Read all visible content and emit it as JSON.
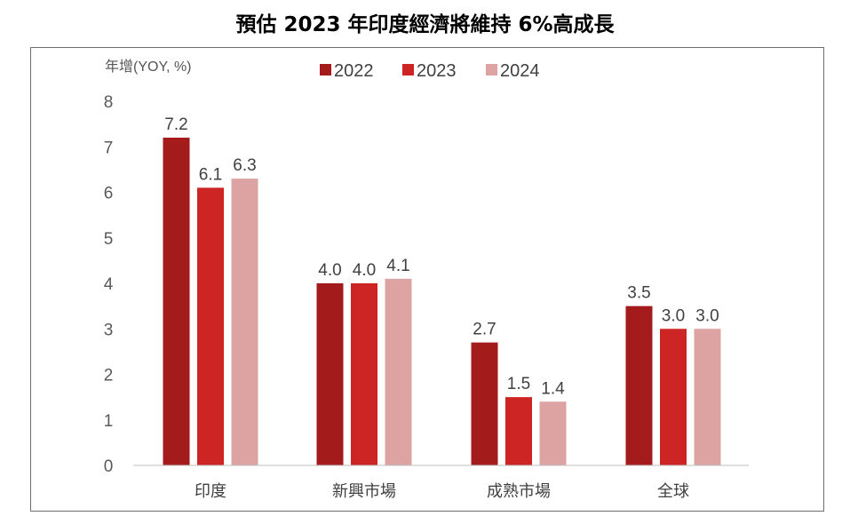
{
  "title": "預估 2023 年印度經濟將維持 6%高成長",
  "chart_data": {
    "type": "bar",
    "title": "預估 2023 年印度經濟將維持 6%高成長",
    "ylabel": "年增(YOY, %)",
    "xlabel": "",
    "categories": [
      "印度",
      "新興市場",
      "成熟市場",
      "全球"
    ],
    "series": [
      {
        "name": "2022",
        "values": [
          7.2,
          4.0,
          2.7,
          3.5
        ],
        "color": "#a31b1b"
      },
      {
        "name": "2023",
        "values": [
          6.1,
          4.0,
          1.5,
          3.0
        ],
        "color": "#cd2424"
      },
      {
        "name": "2024",
        "values": [
          6.3,
          4.1,
          1.4,
          3.0
        ],
        "color": "#dda3a3"
      }
    ],
    "data_labels": [
      [
        "7.2",
        "6.1",
        "6.3"
      ],
      [
        "4.0",
        "4.0",
        "4.1"
      ],
      [
        "2.7",
        "1.5",
        "1.4"
      ],
      [
        "3.5",
        "3.0",
        "3.0"
      ]
    ],
    "ylim": [
      0,
      8
    ],
    "yticks": [
      "0",
      "1",
      "2",
      "3",
      "4",
      "5",
      "6",
      "7",
      "8"
    ],
    "legend": "top",
    "grid": false
  }
}
